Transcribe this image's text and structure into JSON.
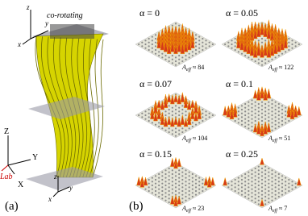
{
  "panel_a": {
    "frame_label": "co-rotating",
    "frame_axes": {
      "z": "z",
      "y": "y",
      "x": "x"
    },
    "bottom_axes": {
      "z": "z",
      "y": "y",
      "x": "x"
    },
    "lab_axes": {
      "z": "Z",
      "y": "Y",
      "x": "X"
    },
    "lab_label": "Lab",
    "caption": "(a)"
  },
  "panel_b": {
    "caption": "(b)",
    "panels": [
      {
        "alpha": "α = 0",
        "area_symbol": "A",
        "area_subscript": "eff",
        "area": "≈ 84"
      },
      {
        "alpha": "α = 0.05",
        "area_symbol": "A",
        "area_subscript": "eff",
        "area": "≈ 122"
      },
      {
        "alpha": "α = 0.07",
        "area_symbol": "A",
        "area_subscript": "eff",
        "area": "≈ 104"
      },
      {
        "alpha": "α = 0.1",
        "area_symbol": "A",
        "area_subscript": "eff",
        "area": "≈ 51"
      },
      {
        "alpha": "α = 0.15",
        "area_symbol": "A",
        "area_subscript": "eff",
        "area": "≈ 23"
      },
      {
        "alpha": "α = 0.25",
        "area_symbol": "A",
        "area_subscript": "eff",
        "area": "≈ 7"
      }
    ]
  }
}
